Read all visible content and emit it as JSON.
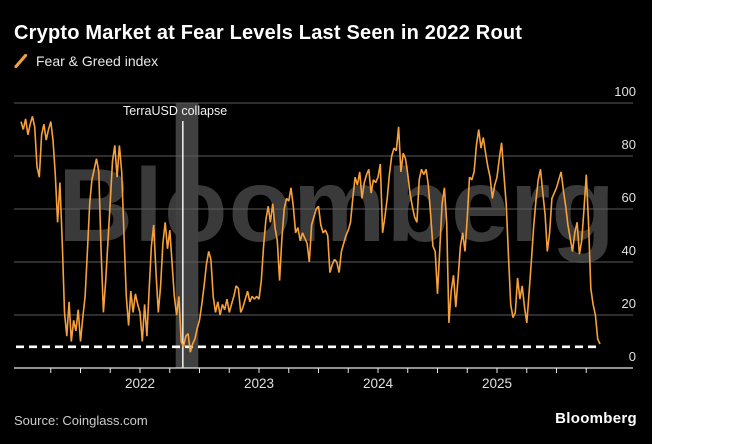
{
  "header": {
    "title": "Crypto Market at Fear Levels Last Seen in 2022 Rout",
    "legend_label": "Fear & Greed index"
  },
  "annotation": {
    "label": "TerraUSD collapse"
  },
  "watermark": {
    "text": "Bloomberg"
  },
  "footer": {
    "source": "Source: Coinglass.com",
    "logo": "Bloomberg"
  },
  "colors": {
    "background": "#000000",
    "page_margin": "#ffffff",
    "line": "#f8a13a",
    "legend_icon": "#f0a03c",
    "title_text": "#ffffff",
    "axis_text": "#e0e0e0",
    "gridline": "#5c5c5c",
    "axis_line": "#e8e8e8",
    "dashed_reference": "#ffffff",
    "watermark": "#3a3a3a",
    "event_band": "#404040",
    "event_line": "#ffffff"
  },
  "chart_data": {
    "type": "line",
    "title": "Crypto Market at Fear Levels Last Seen in 2022 Rout",
    "series_name": "Fear & Greed index",
    "xlabel": "",
    "ylabel": "",
    "ylim": [
      0,
      100
    ],
    "y_ticks": [
      100,
      80,
      60,
      40,
      20,
      0
    ],
    "x_year_labels": [
      2022,
      2023,
      2024,
      2025
    ],
    "x_minor_tick_interval_years": 0.25,
    "x_minor_tick_start": 2021.25,
    "x_minor_tick_end": 2025.75,
    "grid": "horizontal",
    "legend_position": "top-left",
    "y_axis_side": "right",
    "dashed_reference_value": 8,
    "event_annotation": {
      "label": "TerraUSD collapse",
      "line_year": 2022.36,
      "band_year_range": [
        2022.3,
        2022.49
      ]
    },
    "x_start_year": 2021.0,
    "x_step_years": 0.0192308,
    "values": [
      93,
      90,
      94,
      88,
      92,
      95,
      91,
      76,
      72,
      88,
      92,
      86,
      90,
      93,
      86,
      73,
      55,
      70,
      48,
      21,
      12,
      25,
      10,
      18,
      14,
      22,
      10,
      19,
      27,
      44,
      62,
      71,
      75,
      79,
      74,
      44,
      21,
      33,
      48,
      63,
      78,
      84,
      72,
      84,
      74,
      50,
      27,
      16,
      29,
      21,
      28,
      24,
      21,
      10,
      24,
      12,
      30,
      46,
      54,
      36,
      21,
      31,
      47,
      55,
      45,
      52,
      40,
      27,
      20,
      27,
      10,
      8,
      12,
      13,
      6,
      9,
      11,
      15,
      18,
      24,
      31,
      39,
      44,
      41,
      27,
      21,
      25,
      20,
      24,
      22,
      26,
      21,
      24,
      27,
      31,
      30,
      21,
      23,
      26,
      29,
      25,
      27,
      26,
      27,
      26,
      33,
      46,
      56,
      61,
      55,
      62,
      53,
      48,
      33,
      49,
      60,
      64,
      63,
      68,
      61,
      51,
      53,
      48,
      51,
      49,
      47,
      40,
      54,
      57,
      60,
      61,
      54,
      51,
      52,
      50,
      36,
      39,
      41,
      40,
      36,
      44,
      47,
      50,
      52,
      55,
      64,
      72,
      69,
      74,
      64,
      70,
      73,
      75,
      66,
      71,
      70,
      72,
      77,
      51,
      57,
      64,
      73,
      80,
      83,
      82,
      91,
      74,
      81,
      79,
      73,
      66,
      61,
      57,
      55,
      71,
      75,
      73,
      75,
      69,
      58,
      46,
      44,
      28,
      45,
      62,
      68,
      55,
      17,
      29,
      35,
      23,
      34,
      46,
      51,
      44,
      57,
      72,
      71,
      74,
      84,
      90,
      83,
      87,
      81,
      76,
      72,
      64,
      69,
      72,
      79,
      85,
      73,
      62,
      43,
      24,
      19,
      21,
      34,
      26,
      31,
      23,
      17,
      28,
      40,
      53,
      63,
      71,
      75,
      66,
      58,
      44,
      51,
      64,
      66,
      68,
      71,
      74,
      67,
      61,
      54,
      49,
      44,
      51,
      55,
      43,
      48,
      60,
      73,
      55,
      30,
      24,
      20,
      11,
      9
    ]
  }
}
